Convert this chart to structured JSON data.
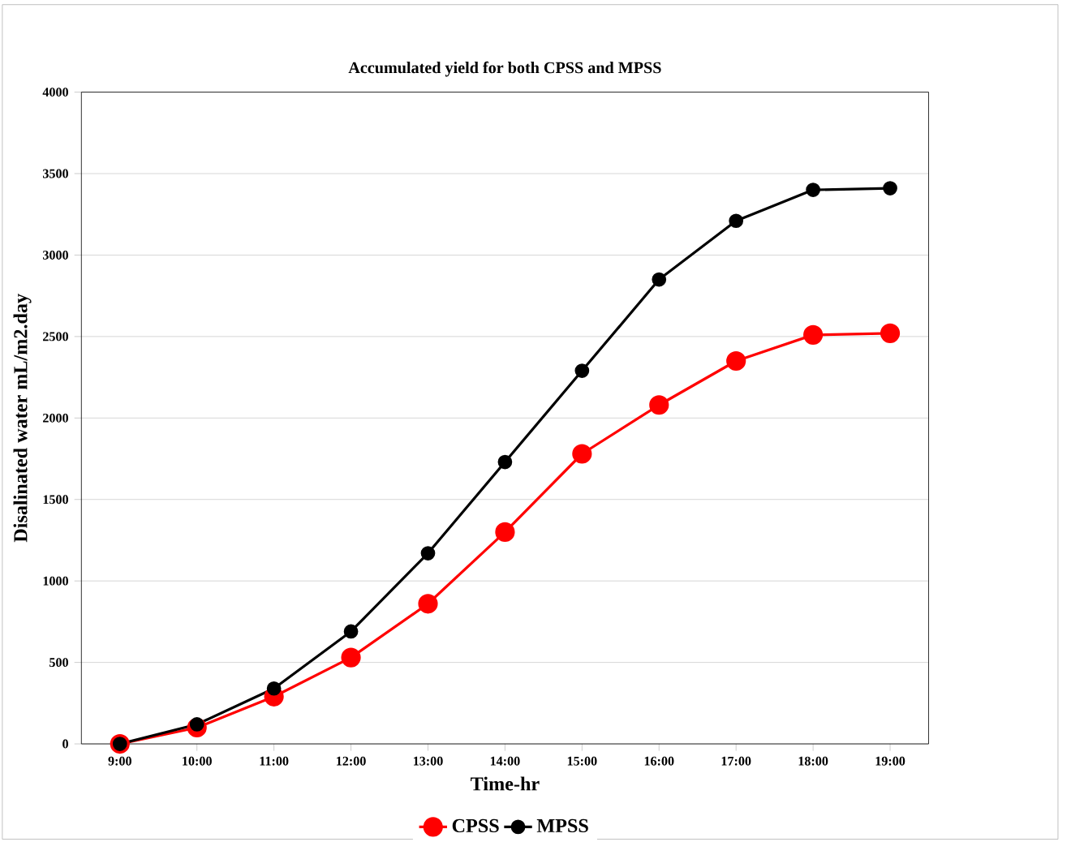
{
  "chart_data": {
    "type": "line",
    "title": "Accumulated yield for both CPSS and MPSS",
    "xlabel": "Time-hr",
    "ylabel": "Disalinated water mL/m2.day",
    "categories": [
      "9:00",
      "10:00",
      "11:00",
      "12:00",
      "13:00",
      "14:00",
      "15:00",
      "16:00",
      "17:00",
      "18:00",
      "19:00"
    ],
    "series": [
      {
        "name": "CPSS",
        "color": "#ff0000",
        "values": [
          0,
          100,
          290,
          530,
          860,
          1300,
          1780,
          2080,
          2350,
          2510,
          2520
        ]
      },
      {
        "name": "MPSS",
        "color": "#000000",
        "values": [
          0,
          120,
          340,
          690,
          1170,
          1730,
          2290,
          2850,
          3210,
          3400,
          3410
        ]
      }
    ],
    "ylim": [
      0,
      4000
    ],
    "yticks": [
      0,
      500,
      1000,
      1500,
      2000,
      2500,
      3000,
      3500,
      4000
    ],
    "grid": "y",
    "legend": "bottom",
    "marker": "circle",
    "line_style": "solid"
  }
}
